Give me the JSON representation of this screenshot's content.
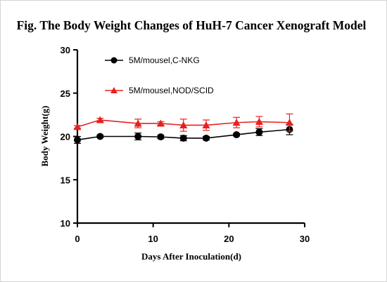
{
  "chart_data": {
    "type": "line",
    "title": "Fig. The Body Weight Changes of HuH-7 Cancer Xenograft Model",
    "xlabel": "Days After Inoculation(d)",
    "ylabel": "Body Weight(g)",
    "xlim": [
      0,
      30
    ],
    "ylim": [
      10,
      30
    ],
    "xticks": [
      0,
      10,
      20,
      30
    ],
    "yticks": [
      10,
      15,
      20,
      25,
      30
    ],
    "grid": false,
    "legend_position": "top-left",
    "series": [
      {
        "name": "5M/mousel,C-NKG",
        "color": "#000000",
        "marker": "circle",
        "x": [
          0,
          3,
          8,
          11,
          14,
          17,
          21,
          24,
          28
        ],
        "y": [
          19.6,
          20.0,
          20.0,
          19.95,
          19.8,
          19.8,
          20.2,
          20.5,
          20.8
        ],
        "error": [
          0.4,
          0.15,
          0.4,
          0.2,
          0.3,
          0.2,
          0.15,
          0.4,
          0.6
        ]
      },
      {
        "name": "5M/mousel,NOD/SCID",
        "color": "#e8201e",
        "marker": "triangle",
        "x": [
          0,
          3,
          8,
          11,
          14,
          17,
          21,
          24,
          28
        ],
        "y": [
          21.1,
          21.9,
          21.5,
          21.5,
          21.3,
          21.3,
          21.6,
          21.7,
          21.6
        ],
        "error": [
          0.15,
          0.2,
          0.5,
          0.2,
          0.7,
          0.6,
          0.6,
          0.6,
          1.0
        ]
      }
    ]
  }
}
